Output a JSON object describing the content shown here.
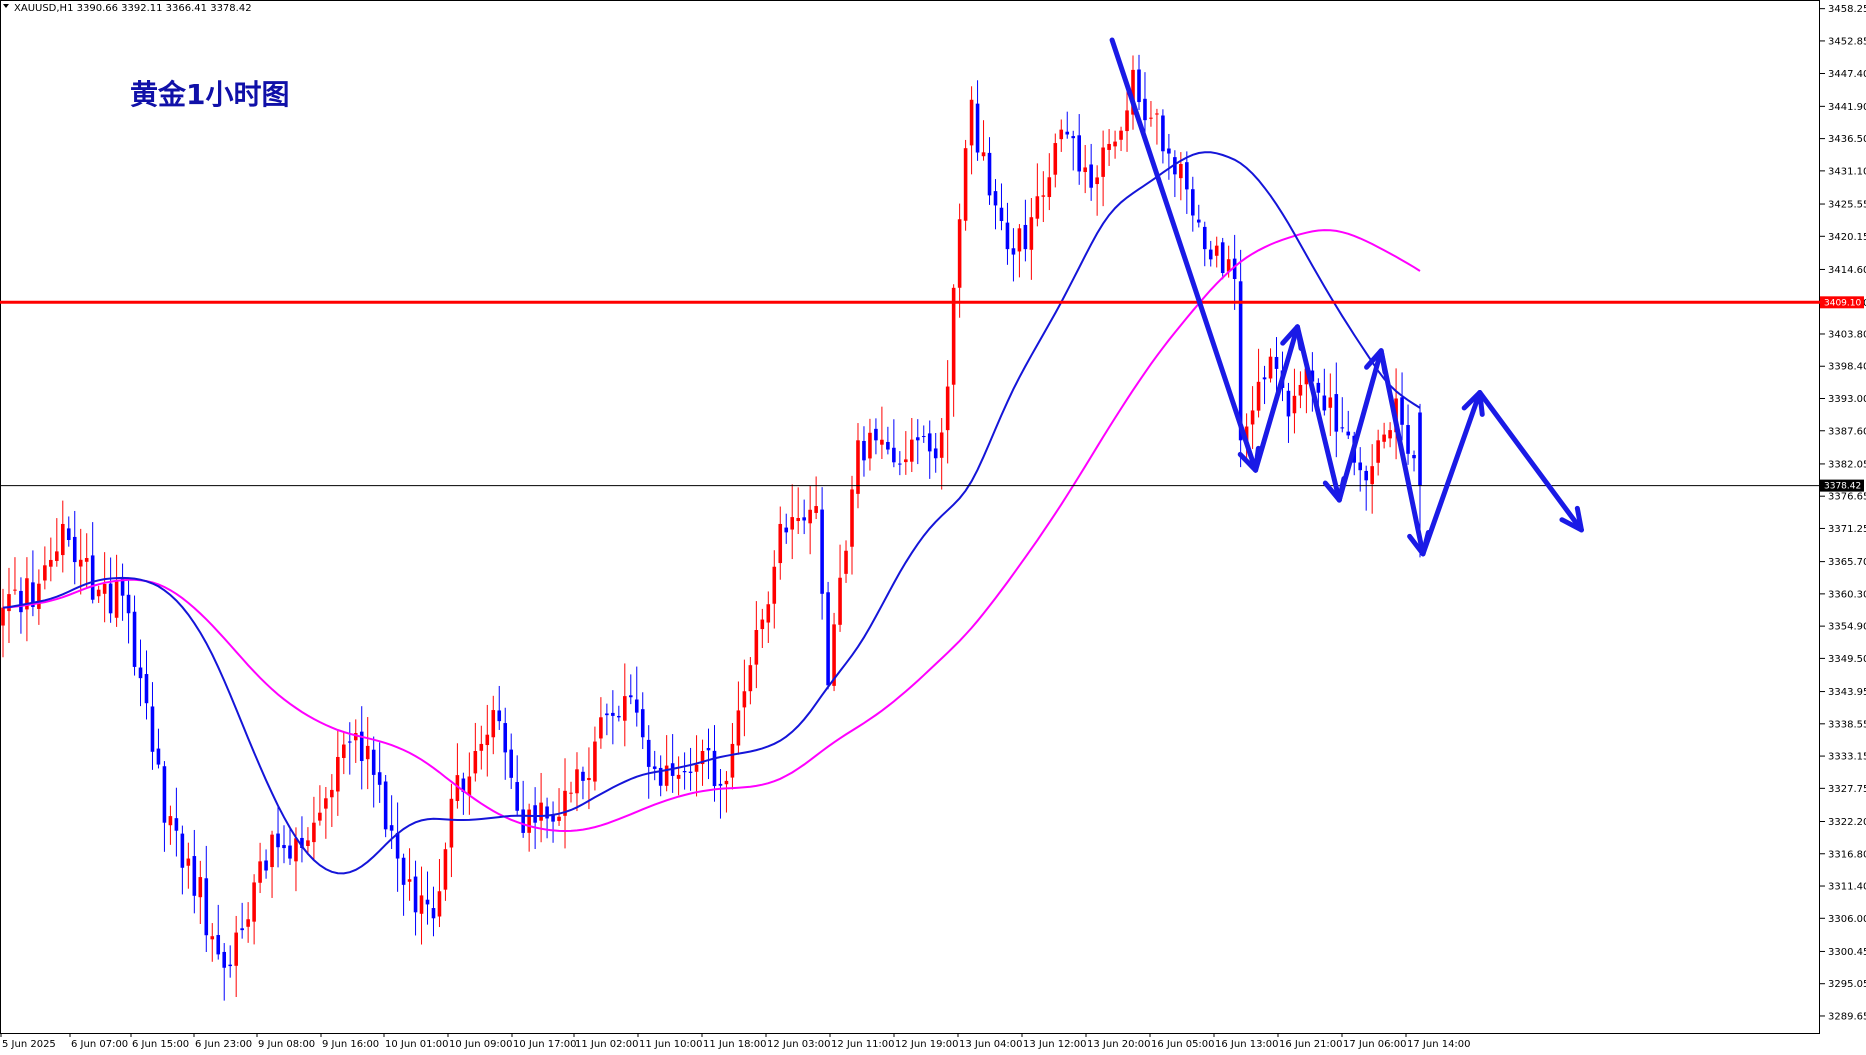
{
  "header": {
    "symbol_line": "XAUUSD,H1  3390.66 3392.11 3366.41 3378.42"
  },
  "title": "黄金1小时图",
  "colors": {
    "bull": "#ff0000",
    "bear": "#0000ff",
    "ma_fast": "#1515d8",
    "ma_slow": "#ff00ff",
    "resistance": "#ff0000",
    "arrow": "#1a1ae6",
    "title": "#1010a8"
  },
  "chart_data": {
    "type": "candlestick",
    "title": "黄金1小时图",
    "xlabel": "",
    "ylabel": "",
    "ylim": [
      3286.8,
      3459.7
    ],
    "y_ticks": [
      "3458.25",
      "3452.85",
      "3447.40",
      "3441.90",
      "3436.50",
      "3431.10",
      "3425.55",
      "3420.15",
      "3414.60",
      "3409.10",
      "3403.80",
      "3398.40",
      "3393.00",
      "3387.60",
      "3382.05",
      "3376.65",
      "3371.25",
      "3365.70",
      "3360.30",
      "3354.90",
      "3349.50",
      "3343.95",
      "3338.55",
      "3333.15",
      "3327.75",
      "3322.20",
      "3316.80",
      "3311.40",
      "3306.00",
      "3300.45",
      "3295.05",
      "3289.65"
    ],
    "x_ticks": [
      "5 Jun 2025",
      "6 Jun 07:00",
      "6 Jun 15:00",
      "6 Jun 23:00",
      "9 Jun 08:00",
      "9 Jun 16:00",
      "10 Jun 01:00",
      "10 Jun 09:00",
      "10 Jun 17:00",
      "11 Jun 02:00",
      "11 Jun 10:00",
      "11 Jun 18:00",
      "12 Jun 03:00",
      "12 Jun 11:00",
      "12 Jun 19:00",
      "13 Jun 04:00",
      "13 Jun 12:00",
      "13 Jun 20:00",
      "16 Jun 05:00",
      "16 Jun 13:00",
      "16 Jun 21:00",
      "17 Jun 06:00",
      "17 Jun 14:00"
    ],
    "price_anchors": [
      [
        0,
        3358
      ],
      [
        6,
        3362
      ],
      [
        10,
        3372
      ],
      [
        13,
        3366
      ],
      [
        16,
        3361
      ],
      [
        20,
        3360
      ],
      [
        24,
        3342
      ],
      [
        27,
        3322
      ],
      [
        31,
        3316
      ],
      [
        35,
        3303
      ],
      [
        38,
        3298
      ],
      [
        42,
        3312
      ],
      [
        45,
        3320
      ],
      [
        48,
        3316
      ],
      [
        52,
        3322
      ],
      [
        56,
        3333
      ],
      [
        59,
        3337
      ],
      [
        62,
        3330
      ],
      [
        66,
        3316
      ],
      [
        69,
        3307
      ],
      [
        72,
        3306
      ],
      [
        75,
        3326
      ],
      [
        79,
        3334
      ],
      [
        83,
        3339
      ],
      [
        86,
        3324
      ],
      [
        89,
        3322
      ],
      [
        93,
        3323
      ],
      [
        97,
        3329
      ],
      [
        101,
        3340
      ],
      [
        105,
        3343
      ],
      [
        109,
        3331
      ],
      [
        113,
        3330
      ],
      [
        117,
        3334
      ],
      [
        121,
        3329
      ],
      [
        124,
        3344
      ],
      [
        127,
        3356
      ],
      [
        130,
        3372
      ],
      [
        133,
        3373
      ],
      [
        136,
        3375
      ],
      [
        138,
        3345
      ],
      [
        140,
        3363
      ],
      [
        143,
        3386
      ],
      [
        146,
        3386
      ],
      [
        150,
        3382
      ],
      [
        153,
        3386
      ],
      [
        156,
        3383
      ],
      [
        158,
        3395
      ],
      [
        160,
        3423
      ],
      [
        162,
        3443
      ],
      [
        165,
        3427
      ],
      [
        168,
        3418
      ],
      [
        171,
        3418
      ],
      [
        174,
        3427
      ],
      [
        177,
        3438
      ],
      [
        180,
        3431
      ],
      [
        183,
        3430
      ],
      [
        186,
        3436
      ],
      [
        189,
        3448
      ],
      [
        192,
        3440
      ],
      [
        195,
        3434
      ],
      [
        198,
        3428
      ],
      [
        201,
        3418
      ],
      [
        204,
        3414
      ],
      [
        206,
        3413
      ],
      [
        207,
        3386
      ],
      [
        209,
        3391
      ],
      [
        212,
        3400
      ],
      [
        215,
        3390
      ],
      [
        218,
        3398
      ],
      [
        221,
        3391
      ],
      [
        224,
        3388
      ],
      [
        227,
        3381
      ],
      [
        230,
        3386
      ],
      [
        233,
        3393
      ],
      [
        236,
        3383
      ],
      [
        237,
        3378.42
      ]
    ],
    "levels": {
      "resistance": 3409.1,
      "current_price": 3378.42
    },
    "series": [
      {
        "name": "",
        "type": "moving-average"
      },
      {
        "name": "",
        "type": "moving-average"
      }
    ]
  },
  "price_tags": {
    "resistance": "3409.10",
    "current": "3378.42"
  }
}
